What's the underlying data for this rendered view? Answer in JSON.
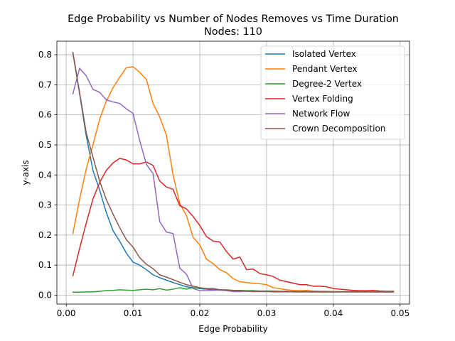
{
  "chart_data": {
    "type": "line",
    "title": "Edge Probability vs Number of Nodes Removes vs Time Duration",
    "subtitle": "Nodes: 110",
    "xlabel": "Edge Probability",
    "ylabel": "y-axis",
    "xlim": [
      -0.0014,
      0.0514
    ],
    "ylim": [
      -0.0295,
      0.845
    ],
    "xticks": [
      0.0,
      0.01,
      0.02,
      0.03,
      0.04,
      0.05
    ],
    "xtick_labels": [
      "0.00",
      "0.01",
      "0.02",
      "0.03",
      "0.04",
      "0.05"
    ],
    "yticks": [
      0.0,
      0.1,
      0.2,
      0.3,
      0.4,
      0.5,
      0.6,
      0.7,
      0.8
    ],
    "ytick_labels": [
      "0.0",
      "0.1",
      "0.2",
      "0.3",
      "0.4",
      "0.5",
      "0.6",
      "0.7",
      "0.8"
    ],
    "grid": true,
    "legend_position": "top-right",
    "x": [
      0.001,
      0.002,
      0.003,
      0.004,
      0.005,
      0.006,
      0.007,
      0.008,
      0.009,
      0.01,
      0.011,
      0.012,
      0.013,
      0.014,
      0.015,
      0.016,
      0.017,
      0.018,
      0.019,
      0.02,
      0.021,
      0.022,
      0.023,
      0.024,
      0.025,
      0.026,
      0.027,
      0.028,
      0.029,
      0.03,
      0.031,
      0.032,
      0.033,
      0.034,
      0.035,
      0.036,
      0.037,
      0.038,
      0.039,
      0.04,
      0.041,
      0.042,
      0.043,
      0.044,
      0.045,
      0.046,
      0.047,
      0.048,
      0.049
    ],
    "series": [
      {
        "name": "Isolated Vertex",
        "color": "#1f77b4",
        "values": [
          0.805,
          0.67,
          0.53,
          0.415,
          0.35,
          0.275,
          0.215,
          0.18,
          0.14,
          0.11,
          0.1,
          0.085,
          0.068,
          0.058,
          0.05,
          0.042,
          0.035,
          0.028,
          0.025,
          0.022,
          0.02,
          0.018,
          0.017,
          0.016,
          0.015,
          0.014,
          0.014,
          0.013,
          0.013,
          0.013,
          0.012,
          0.012,
          0.012,
          0.011,
          0.011,
          0.011,
          0.011,
          0.011,
          0.011,
          0.011,
          0.011,
          0.011,
          0.011,
          0.011,
          0.011,
          0.011,
          0.011,
          0.011,
          0.011
        ]
      },
      {
        "name": "Pendant Vertex",
        "color": "#ff7f0e",
        "values": [
          0.205,
          0.32,
          0.42,
          0.5,
          0.585,
          0.645,
          0.69,
          0.725,
          0.757,
          0.76,
          0.742,
          0.718,
          0.638,
          0.593,
          0.533,
          0.4,
          0.305,
          0.265,
          0.192,
          0.167,
          0.12,
          0.105,
          0.085,
          0.075,
          0.055,
          0.045,
          0.042,
          0.04,
          0.038,
          0.035,
          0.025,
          0.022,
          0.018,
          0.016,
          0.015,
          0.016,
          0.014,
          0.013,
          0.013,
          0.012,
          0.012,
          0.012,
          0.012,
          0.012,
          0.012,
          0.012,
          0.012,
          0.012,
          0.012
        ]
      },
      {
        "name": "Degree-2 Vertex",
        "color": "#2ca02c",
        "values": [
          0.01,
          0.01,
          0.011,
          0.011,
          0.013,
          0.015,
          0.016,
          0.018,
          0.017,
          0.016,
          0.018,
          0.02,
          0.018,
          0.022,
          0.017,
          0.02,
          0.025,
          0.02,
          0.025,
          0.024,
          0.022,
          0.022,
          0.018,
          0.018,
          0.016,
          0.016,
          0.015,
          0.015,
          0.014,
          0.014,
          0.014,
          0.013,
          0.013,
          0.012,
          0.012,
          0.012,
          0.012,
          0.012,
          0.012,
          0.012,
          0.012,
          0.012,
          0.012,
          0.012,
          0.012,
          0.011,
          0.011,
          0.011,
          0.011
        ]
      },
      {
        "name": "Vertex Folding",
        "color": "#d62728",
        "values": [
          0.065,
          0.155,
          0.24,
          0.32,
          0.375,
          0.415,
          0.44,
          0.455,
          0.45,
          0.437,
          0.437,
          0.443,
          0.432,
          0.38,
          0.36,
          0.352,
          0.298,
          0.287,
          0.262,
          0.232,
          0.195,
          0.18,
          0.177,
          0.145,
          0.12,
          0.127,
          0.085,
          0.087,
          0.072,
          0.068,
          0.062,
          0.05,
          0.045,
          0.04,
          0.035,
          0.035,
          0.03,
          0.03,
          0.028,
          0.022,
          0.02,
          0.018,
          0.016,
          0.015,
          0.015,
          0.016,
          0.014,
          0.013,
          0.013
        ]
      },
      {
        "name": "Network Flow",
        "color": "#9467bd",
        "values": [
          0.67,
          0.755,
          0.73,
          0.685,
          0.675,
          0.65,
          0.643,
          0.638,
          0.62,
          0.605,
          0.515,
          0.435,
          0.405,
          0.245,
          0.21,
          0.205,
          0.09,
          0.07,
          0.022,
          0.015,
          0.015,
          0.016,
          0.017,
          0.015,
          0.012,
          0.012,
          0.013,
          0.012,
          0.012,
          0.012,
          0.011,
          0.011,
          0.011,
          0.011,
          0.011,
          0.011,
          0.011,
          0.011,
          0.011,
          0.011,
          0.011,
          0.011,
          0.011,
          0.011,
          0.011,
          0.011,
          0.011,
          0.011,
          0.011
        ]
      },
      {
        "name": "Crown Decomposition",
        "color": "#8c564b",
        "values": [
          0.808,
          0.675,
          0.54,
          0.46,
          0.38,
          0.318,
          0.27,
          0.225,
          0.185,
          0.16,
          0.125,
          0.103,
          0.088,
          0.068,
          0.06,
          0.052,
          0.043,
          0.035,
          0.03,
          0.025,
          0.022,
          0.022,
          0.018,
          0.017,
          0.016,
          0.015,
          0.014,
          0.013,
          0.013,
          0.013,
          0.012,
          0.012,
          0.012,
          0.012,
          0.012,
          0.012,
          0.011,
          0.011,
          0.011,
          0.011,
          0.011,
          0.011,
          0.011,
          0.011,
          0.011,
          0.011,
          0.011,
          0.011,
          0.011
        ]
      }
    ]
  }
}
